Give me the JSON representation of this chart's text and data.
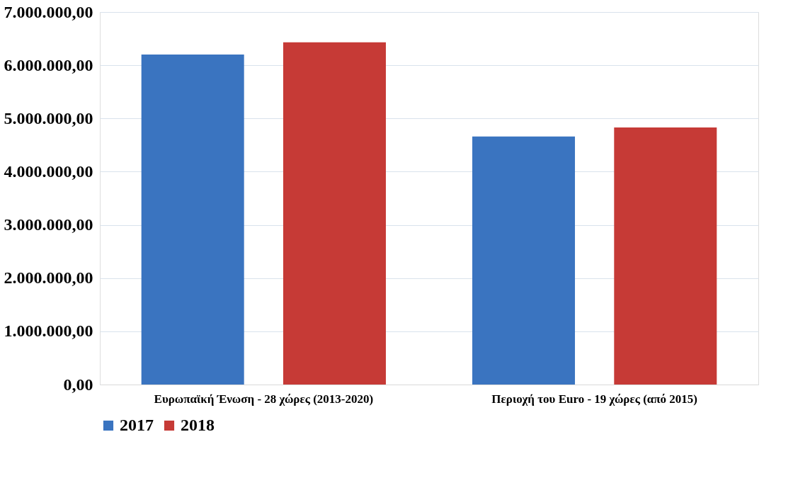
{
  "chart_data": {
    "type": "bar",
    "categories": [
      "Ευρωπαϊκή Ένωση - 28 χώρες (2013-2020)",
      "Περιοχή του Euro - 19 χώρες  (από 2015)"
    ],
    "series": [
      {
        "name": "2017",
        "color": "#3a74c0",
        "values": [
          6200000,
          4660000
        ]
      },
      {
        "name": "2018",
        "color": "#c63a36",
        "values": [
          6430000,
          4830000
        ]
      }
    ],
    "ylim": [
      0,
      7000000
    ],
    "yticks": [
      {
        "value": 0,
        "label": "0,00"
      },
      {
        "value": 1000000,
        "label": "1.000.000,00"
      },
      {
        "value": 2000000,
        "label": "2.000.000,00"
      },
      {
        "value": 3000000,
        "label": "3.000.000,00"
      },
      {
        "value": 4000000,
        "label": "4.000.000,00"
      },
      {
        "value": 5000000,
        "label": "5.000.000,00"
      },
      {
        "value": 6000000,
        "label": "6.000.000,00"
      },
      {
        "value": 7000000,
        "label": "7.000.000,00"
      }
    ],
    "grid": "y",
    "legend": "bottom"
  }
}
